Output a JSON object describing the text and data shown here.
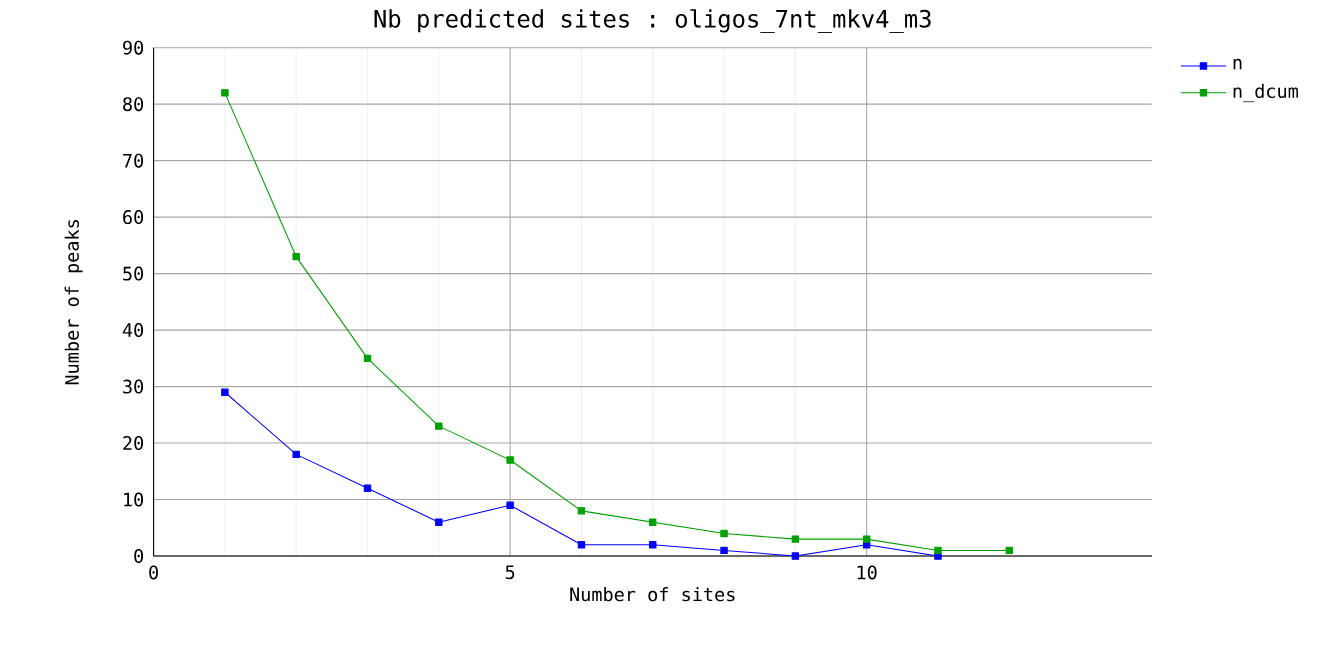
{
  "chart_data": {
    "type": "line",
    "title": "Nb predicted sites : oligos_7nt_mkv4_m3",
    "xlabel": "Number of sites",
    "ylabel": "Number of peaks",
    "x": [
      1,
      2,
      3,
      4,
      5,
      6,
      7,
      8,
      9,
      10,
      11,
      12
    ],
    "series": [
      {
        "name": "n",
        "color": "#0000ff",
        "values": [
          29,
          18,
          12,
          6,
          9,
          2,
          2,
          1,
          0,
          2,
          0,
          null
        ]
      },
      {
        "name": "n_dcum",
        "color": "#00a000",
        "values": [
          82,
          53,
          35,
          23,
          17,
          8,
          6,
          4,
          3,
          3,
          1,
          1
        ]
      }
    ],
    "xlim": [
      0,
      14
    ],
    "xticks": [
      0,
      5,
      10
    ],
    "ylim": [
      0,
      90
    ],
    "yticks": [
      0,
      10,
      20,
      30,
      40,
      50,
      60,
      70,
      80,
      90
    ],
    "grid": true,
    "legend": "top right",
    "marker": "square",
    "line_style": "solid"
  }
}
